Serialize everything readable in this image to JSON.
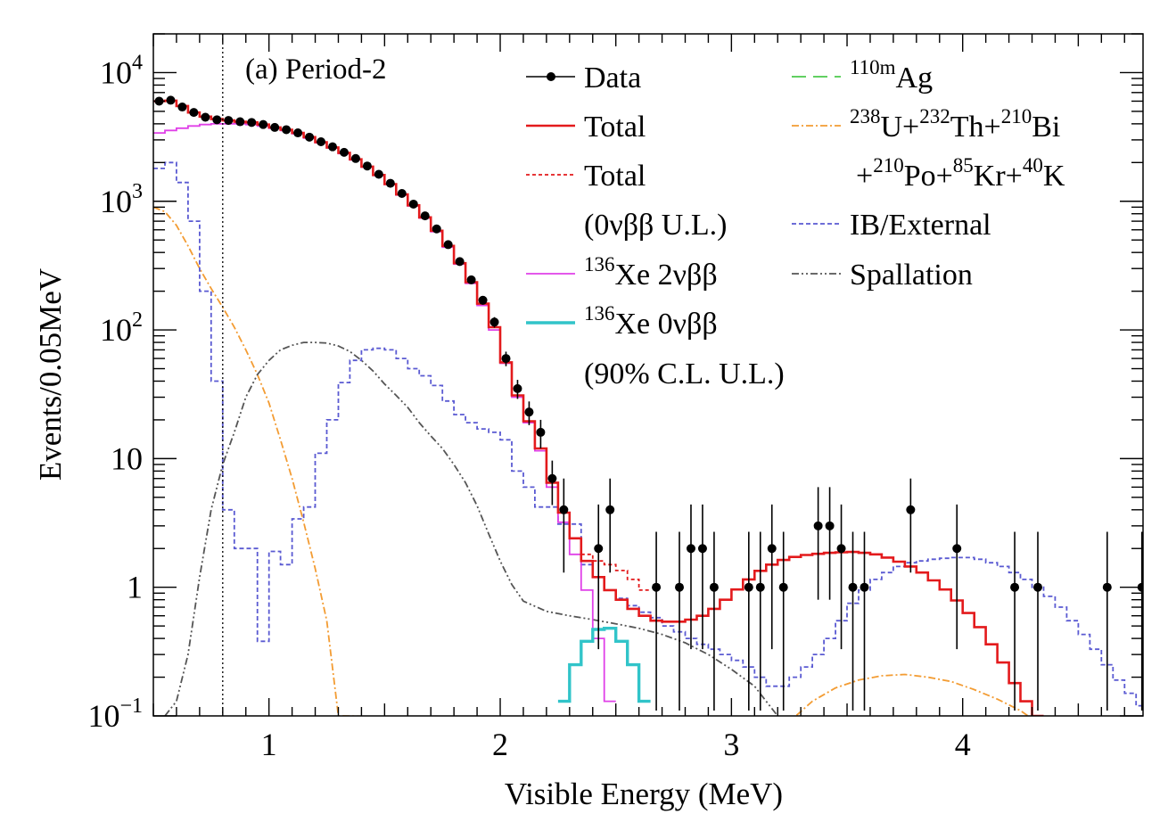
{
  "chart_data": {
    "type": "line",
    "title": "(a) Period-2",
    "xlabel": "Visible Energy (MeV)",
    "ylabel": "Events/0.05MeV",
    "xlim": [
      0.5,
      4.78
    ],
    "ylim": [
      0.1,
      20000
    ],
    "yscale": "log",
    "grid": false,
    "legend_position": "top-right",
    "x_ticks": [
      {
        "value": 1,
        "label": "1"
      },
      {
        "value": 2,
        "label": "2"
      },
      {
        "value": 3,
        "label": "3"
      },
      {
        "value": 4,
        "label": "4"
      }
    ],
    "y_ticks": [
      {
        "value": 0.1,
        "base": "10",
        "exp": "−1"
      },
      {
        "value": 1,
        "label": "1"
      },
      {
        "value": 10,
        "label": "10"
      },
      {
        "value": 100,
        "base": "10",
        "exp": "2"
      },
      {
        "value": 1000,
        "base": "10",
        "exp": "3"
      },
      {
        "value": 10000,
        "base": "10",
        "exp": "4"
      }
    ],
    "threshold_line_x": 0.8,
    "legend": [
      {
        "key": "data",
        "segments": [
          {
            "text": "Data"
          }
        ]
      },
      {
        "key": "total",
        "segments": [
          {
            "text": "Total"
          }
        ]
      },
      {
        "key": "total_ul",
        "segments": [
          {
            "text": "Total"
          }
        ]
      },
      {
        "key": "none",
        "segments": [
          {
            "text": "(0νββ U.L.)"
          }
        ]
      },
      {
        "key": "xe2nu",
        "segments": [
          {
            "sup": "136"
          },
          {
            "text": "Xe 2νββ"
          }
        ]
      },
      {
        "key": "xe0nu",
        "segments": [
          {
            "sup": "136"
          },
          {
            "text": "Xe 0νββ"
          }
        ]
      },
      {
        "key": "none",
        "segments": [
          {
            "text": "(90% C.L. U.L.)"
          }
        ]
      },
      {
        "key": "ag",
        "segments": [
          {
            "sup": "110m"
          },
          {
            "text": "Ag"
          }
        ]
      },
      {
        "key": "uth",
        "segments": [
          {
            "sup": "238"
          },
          {
            "text": "U+"
          },
          {
            "sup": "232"
          },
          {
            "text": "Th+"
          },
          {
            "sup": "210"
          },
          {
            "text": "Bi"
          }
        ]
      },
      {
        "key": "none",
        "segments": [
          {
            "text": "+"
          },
          {
            "sup": "210"
          },
          {
            "text": "Po+"
          },
          {
            "sup": "85"
          },
          {
            "text": "Kr+"
          },
          {
            "sup": "40"
          },
          {
            "text": "K"
          }
        ]
      },
      {
        "key": "ib",
        "segments": [
          {
            "text": "IB/External"
          }
        ]
      },
      {
        "key": "spall",
        "segments": [
          {
            "text": "Spallation"
          }
        ]
      }
    ],
    "series": [
      {
        "name": "Data",
        "key": "data",
        "kind": "points",
        "color": "#000000",
        "points": [
          [
            0.525,
            6000
          ],
          [
            0.575,
            6100
          ],
          [
            0.625,
            5400
          ],
          [
            0.675,
            4900
          ],
          [
            0.725,
            4500
          ],
          [
            0.775,
            4300
          ],
          [
            0.825,
            4250
          ],
          [
            0.875,
            4150
          ],
          [
            0.925,
            4100
          ],
          [
            0.975,
            3950
          ],
          [
            1.025,
            3750
          ],
          [
            1.075,
            3600
          ],
          [
            1.125,
            3400
          ],
          [
            1.175,
            3150
          ],
          [
            1.225,
            2900
          ],
          [
            1.275,
            2650
          ],
          [
            1.325,
            2400
          ],
          [
            1.375,
            2150
          ],
          [
            1.425,
            1880
          ],
          [
            1.475,
            1620
          ],
          [
            1.525,
            1380
          ],
          [
            1.575,
            1150
          ],
          [
            1.625,
            950
          ],
          [
            1.675,
            770
          ],
          [
            1.725,
            610
          ],
          [
            1.775,
            460
          ],
          [
            1.825,
            340
          ],
          [
            1.875,
            245
          ],
          [
            1.925,
            170
          ],
          [
            1.975,
            115
          ],
          [
            2.025,
            60
          ],
          [
            2.075,
            35
          ],
          [
            2.125,
            23
          ],
          [
            2.175,
            16
          ],
          [
            2.225,
            7
          ],
          [
            2.275,
            4
          ],
          [
            2.425,
            2
          ],
          [
            2.475,
            4
          ],
          [
            2.675,
            1
          ],
          [
            2.775,
            1
          ],
          [
            2.825,
            2
          ],
          [
            2.875,
            2
          ],
          [
            2.925,
            1
          ],
          [
            3.075,
            1
          ],
          [
            3.125,
            1
          ],
          [
            3.175,
            2
          ],
          [
            3.225,
            1
          ],
          [
            3.375,
            3
          ],
          [
            3.425,
            3
          ],
          [
            3.475,
            2
          ],
          [
            3.525,
            1
          ],
          [
            3.575,
            1
          ],
          [
            3.775,
            4
          ],
          [
            3.975,
            2
          ],
          [
            4.225,
            1
          ],
          [
            4.325,
            1
          ],
          [
            4.625,
            1
          ],
          [
            4.775,
            1
          ]
        ]
      },
      {
        "name": "Total",
        "key": "total",
        "kind": "step",
        "color": "#e31a1c",
        "dash": "",
        "width": 2.6,
        "x0": 0.5,
        "dx": 0.05,
        "values": [
          6000,
          6050,
          5500,
          4900,
          4550,
          4350,
          4250,
          4150,
          4100,
          3950,
          3750,
          3600,
          3400,
          3150,
          2880,
          2620,
          2380,
          2120,
          1860,
          1600,
          1360,
          1130,
          930,
          750,
          590,
          450,
          330,
          235,
          160,
          105,
          56,
          31,
          19.5,
          12,
          6.5,
          3.8,
          2.4,
          1.6,
          1.2,
          0.95,
          0.8,
          0.68,
          0.6,
          0.55,
          0.54,
          0.54,
          0.56,
          0.6,
          0.68,
          0.8,
          0.96,
          1.15,
          1.34,
          1.5,
          1.63,
          1.72,
          1.78,
          1.82,
          1.85,
          1.87,
          1.88,
          1.85,
          1.8,
          1.7,
          1.58,
          1.45,
          1.3,
          1.13,
          0.96,
          0.79,
          0.63,
          0.49,
          0.36,
          0.26,
          0.18,
          0.13,
          0.1
        ]
      },
      {
        "name": "Total (0νββ U.L.)",
        "key": "total_ul",
        "kind": "step",
        "color": "#e31a1c",
        "dash": "4,3",
        "width": 1.8,
        "x0": 2.35,
        "dx": 0.05,
        "values": [
          1.8,
          1.6,
          1.5,
          1.35,
          1.15,
          0.95
        ]
      },
      {
        "name": "136Xe 2νββ",
        "key": "xe2nu",
        "kind": "step",
        "color": "#e040e8",
        "dash": "",
        "width": 1.8,
        "x0": 0.5,
        "dx": 0.05,
        "values": [
          3400,
          3550,
          3700,
          3850,
          3950,
          4000,
          4000,
          4000,
          3950,
          3850,
          3700,
          3550,
          3350,
          3100,
          2850,
          2600,
          2350,
          2100,
          1840,
          1590,
          1350,
          1120,
          920,
          740,
          580,
          440,
          325,
          230,
          155,
          100,
          55,
          30,
          19,
          11.5,
          6,
          3.2,
          1.8,
          0.95,
          0.4,
          0.13
        ]
      },
      {
        "name": "136Xe 0νββ",
        "key": "xe0nu",
        "kind": "step",
        "color": "#31c4c9",
        "dash": "",
        "width": 3.4,
        "x0": 2.25,
        "dx": 0.05,
        "values": [
          0.13,
          0.25,
          0.38,
          0.47,
          0.48,
          0.38,
          0.25,
          0.13
        ]
      },
      {
        "name": "110mAg",
        "key": "ag",
        "kind": "step",
        "color": "#4cc94c",
        "dash": "16,8",
        "width": 1.8,
        "x0": 0,
        "dx": 0.05,
        "values": []
      },
      {
        "name": "238U+232Th+210Bi+210Po+85Kr+40K",
        "key": "uth",
        "kind": "smooth",
        "color": "#f39c33",
        "dash": "8,3,2,3",
        "width": 1.8,
        "points": [
          [
            0.5,
            900
          ],
          [
            0.55,
            830
          ],
          [
            0.6,
            650
          ],
          [
            0.65,
            450
          ],
          [
            0.7,
            300
          ],
          [
            0.75,
            210
          ],
          [
            0.8,
            150
          ],
          [
            0.85,
            105
          ],
          [
            0.9,
            70
          ],
          [
            0.95,
            45
          ],
          [
            1.0,
            27
          ],
          [
            1.05,
            14
          ],
          [
            1.1,
            7
          ],
          [
            1.15,
            3.2
          ],
          [
            1.2,
            1.4
          ],
          [
            1.25,
            0.55
          ],
          [
            1.3,
            0.1
          ],
          [
            3.25,
            0.09
          ],
          [
            3.35,
            0.13
          ],
          [
            3.45,
            0.165
          ],
          [
            3.55,
            0.19
          ],
          [
            3.65,
            0.205
          ],
          [
            3.75,
            0.21
          ],
          [
            3.85,
            0.2
          ],
          [
            3.95,
            0.185
          ],
          [
            4.05,
            0.16
          ],
          [
            4.15,
            0.135
          ],
          [
            4.25,
            0.11
          ],
          [
            4.3,
            0.095
          ]
        ]
      },
      {
        "name": "IB/External",
        "key": "ib",
        "kind": "step",
        "color": "#5a5ad2",
        "dash": "5,3",
        "width": 1.8,
        "x0": 0.5,
        "dx": 0.05,
        "values": [
          1800,
          2000,
          1400,
          700,
          200,
          40,
          4,
          2,
          2,
          0.38,
          1.9,
          1.5,
          3.4,
          4.2,
          11,
          20,
          39,
          58,
          70,
          72,
          70,
          60,
          50,
          44,
          37,
          28,
          22,
          19,
          17,
          16,
          14,
          8,
          6,
          4.2,
          4.2,
          3.1,
          3.1,
          1.5,
          1.2,
          0.95,
          0.82,
          0.72,
          0.64,
          0.58,
          0.5,
          0.45,
          0.4,
          0.36,
          0.33,
          0.3,
          0.27,
          0.24,
          0.2,
          0.17,
          0.17,
          0.2,
          0.24,
          0.3,
          0.4,
          0.55,
          0.75,
          0.95,
          1.15,
          1.3,
          1.45,
          1.55,
          1.6,
          1.65,
          1.68,
          1.7,
          1.7,
          1.65,
          1.55,
          1.45,
          1.3,
          1.15,
          1.0,
          0.85,
          0.7,
          0.55,
          0.43,
          0.33,
          0.25,
          0.19,
          0.15,
          0.12,
          0.1
        ]
      },
      {
        "name": "Spallation",
        "key": "spall",
        "kind": "smooth",
        "color": "#555555",
        "dash": "8,3,2,3,2,3",
        "width": 1.8,
        "points": [
          [
            0.55,
            0.1
          ],
          [
            0.6,
            0.13
          ],
          [
            0.65,
            0.3
          ],
          [
            0.7,
            1.2
          ],
          [
            0.75,
            4
          ],
          [
            0.8,
            9
          ],
          [
            0.85,
            16
          ],
          [
            0.9,
            30
          ],
          [
            0.95,
            45
          ],
          [
            1.0,
            58
          ],
          [
            1.05,
            70
          ],
          [
            1.1,
            76
          ],
          [
            1.15,
            80
          ],
          [
            1.2,
            80
          ],
          [
            1.25,
            79
          ],
          [
            1.3,
            75
          ],
          [
            1.35,
            68
          ],
          [
            1.4,
            58
          ],
          [
            1.45,
            48
          ],
          [
            1.5,
            38
          ],
          [
            1.55,
            31
          ],
          [
            1.6,
            25
          ],
          [
            1.65,
            19
          ],
          [
            1.7,
            15
          ],
          [
            1.75,
            12
          ],
          [
            1.8,
            9
          ],
          [
            1.85,
            6.5
          ],
          [
            1.9,
            4.3
          ],
          [
            1.95,
            2.6
          ],
          [
            2.0,
            1.6
          ],
          [
            2.05,
            1.05
          ],
          [
            2.1,
            0.78
          ],
          [
            2.2,
            0.65
          ],
          [
            2.3,
            0.6
          ],
          [
            2.4,
            0.56
          ],
          [
            2.5,
            0.52
          ],
          [
            2.6,
            0.48
          ],
          [
            2.7,
            0.43
          ],
          [
            2.8,
            0.37
          ],
          [
            2.9,
            0.3
          ],
          [
            3.0,
            0.23
          ],
          [
            3.1,
            0.17
          ],
          [
            3.15,
            0.13
          ],
          [
            3.2,
            0.1
          ]
        ]
      }
    ]
  }
}
